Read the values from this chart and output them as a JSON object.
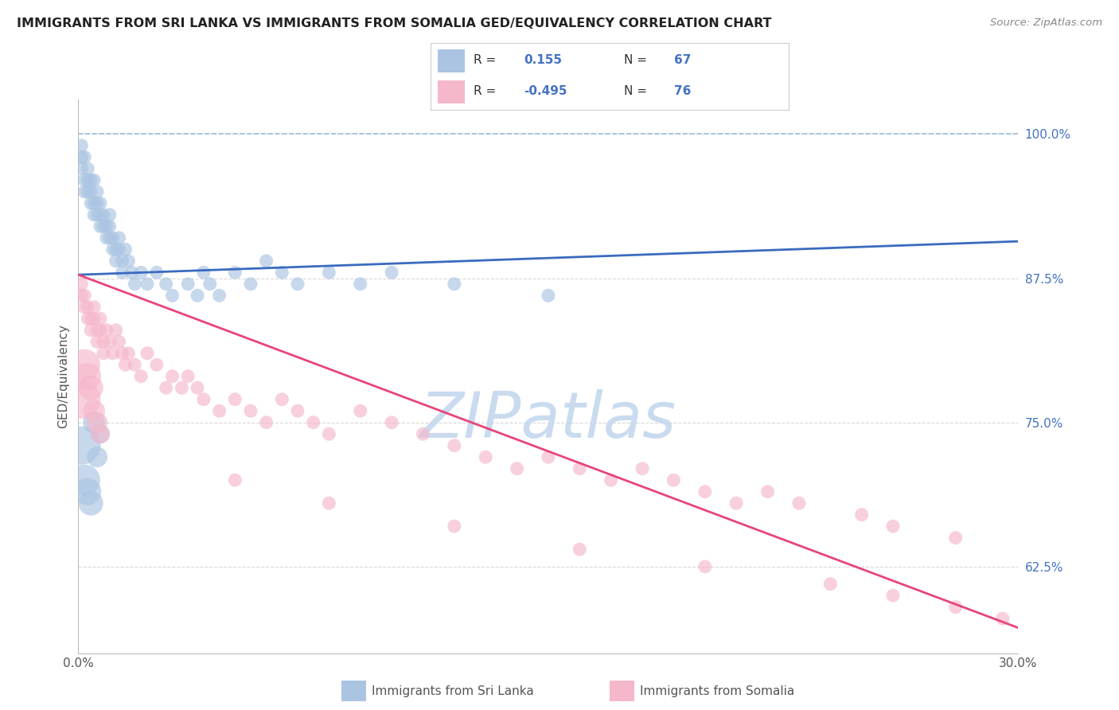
{
  "title": "IMMIGRANTS FROM SRI LANKA VS IMMIGRANTS FROM SOMALIA GED/EQUIVALENCY CORRELATION CHART",
  "source": "Source: ZipAtlas.com",
  "ylabel": "GED/Equivalency",
  "xmin": 0.0,
  "xmax": 0.3,
  "ymin": 0.55,
  "ymax": 1.03,
  "sri_lanka_color": "#aac4e2",
  "somalia_color": "#f5b8cb",
  "sri_lanka_line_color": "#3a6bbf",
  "somalia_line_color": "#e8457a",
  "sri_lanka_R": 0.155,
  "sri_lanka_N": 67,
  "somalia_R": -0.495,
  "somalia_N": 76,
  "watermark": "ZIPatlas",
  "watermark_color": "#c5d8ee",
  "legend_label_sri_lanka": "Immigrants from Sri Lanka",
  "legend_label_somalia": "Immigrants from Somalia",
  "background_color": "#ffffff",
  "grid_color": "#d0d0d0",
  "title_color": "#222222",
  "sri_lanka_trend_x0": 0.0,
  "sri_lanka_trend_y0": 0.878,
  "sri_lanka_trend_x1": 0.3,
  "sri_lanka_trend_y1": 0.907,
  "somalia_trend_x0": 0.0,
  "somalia_trend_y0": 0.878,
  "somalia_trend_x1": 0.3,
  "somalia_trend_y1": 0.572,
  "dashed_line_y": 1.0,
  "ytick_positions": [
    0.625,
    0.75,
    0.875,
    1.0
  ],
  "ytick_labels": [
    "62.5%",
    "75.0%",
    "87.5%",
    "100.0%"
  ],
  "sri_lanka_x": [
    0.001,
    0.001,
    0.001,
    0.002,
    0.002,
    0.002,
    0.003,
    0.003,
    0.003,
    0.004,
    0.004,
    0.004,
    0.005,
    0.005,
    0.005,
    0.006,
    0.006,
    0.006,
    0.007,
    0.007,
    0.007,
    0.008,
    0.008,
    0.009,
    0.009,
    0.01,
    0.01,
    0.01,
    0.011,
    0.011,
    0.012,
    0.012,
    0.013,
    0.013,
    0.014,
    0.014,
    0.015,
    0.016,
    0.017,
    0.018,
    0.02,
    0.022,
    0.025,
    0.028,
    0.03,
    0.035,
    0.038,
    0.04,
    0.042,
    0.045,
    0.05,
    0.055,
    0.06,
    0.065,
    0.07,
    0.08,
    0.09,
    0.1,
    0.12,
    0.15,
    0.001,
    0.002,
    0.003,
    0.004,
    0.005,
    0.006,
    0.007
  ],
  "sri_lanka_y": [
    0.98,
    0.97,
    0.99,
    0.96,
    0.95,
    0.98,
    0.97,
    0.96,
    0.95,
    0.94,
    0.96,
    0.95,
    0.94,
    0.96,
    0.93,
    0.95,
    0.94,
    0.93,
    0.94,
    0.93,
    0.92,
    0.93,
    0.92,
    0.92,
    0.91,
    0.93,
    0.92,
    0.91,
    0.9,
    0.91,
    0.9,
    0.89,
    0.91,
    0.9,
    0.89,
    0.88,
    0.9,
    0.89,
    0.88,
    0.87,
    0.88,
    0.87,
    0.88,
    0.87,
    0.86,
    0.87,
    0.86,
    0.88,
    0.87,
    0.86,
    0.88,
    0.87,
    0.89,
    0.88,
    0.87,
    0.88,
    0.87,
    0.88,
    0.87,
    0.86,
    0.73,
    0.7,
    0.69,
    0.68,
    0.75,
    0.72,
    0.74
  ],
  "sri_lanka_size": [
    15,
    15,
    15,
    15,
    15,
    15,
    15,
    15,
    15,
    15,
    15,
    15,
    15,
    15,
    15,
    15,
    15,
    15,
    15,
    15,
    15,
    15,
    15,
    15,
    15,
    15,
    15,
    15,
    15,
    15,
    15,
    15,
    15,
    15,
    15,
    15,
    15,
    15,
    15,
    15,
    15,
    15,
    15,
    15,
    15,
    15,
    15,
    15,
    15,
    15,
    15,
    15,
    15,
    15,
    15,
    15,
    15,
    15,
    15,
    15,
    120,
    80,
    60,
    50,
    40,
    35,
    30
  ],
  "somalia_x": [
    0.001,
    0.001,
    0.002,
    0.002,
    0.003,
    0.003,
    0.004,
    0.004,
    0.005,
    0.005,
    0.006,
    0.006,
    0.007,
    0.007,
    0.008,
    0.008,
    0.009,
    0.01,
    0.011,
    0.012,
    0.013,
    0.014,
    0.015,
    0.016,
    0.018,
    0.02,
    0.022,
    0.025,
    0.028,
    0.03,
    0.033,
    0.035,
    0.038,
    0.04,
    0.045,
    0.05,
    0.055,
    0.06,
    0.065,
    0.07,
    0.075,
    0.08,
    0.09,
    0.1,
    0.11,
    0.12,
    0.13,
    0.14,
    0.15,
    0.16,
    0.17,
    0.18,
    0.19,
    0.2,
    0.21,
    0.22,
    0.23,
    0.25,
    0.26,
    0.28,
    0.001,
    0.002,
    0.003,
    0.004,
    0.005,
    0.006,
    0.007,
    0.05,
    0.08,
    0.12,
    0.16,
    0.2,
    0.24,
    0.26,
    0.28,
    0.295
  ],
  "somalia_y": [
    0.87,
    0.86,
    0.86,
    0.85,
    0.85,
    0.84,
    0.84,
    0.83,
    0.85,
    0.84,
    0.83,
    0.82,
    0.84,
    0.83,
    0.82,
    0.81,
    0.83,
    0.82,
    0.81,
    0.83,
    0.82,
    0.81,
    0.8,
    0.81,
    0.8,
    0.79,
    0.81,
    0.8,
    0.78,
    0.79,
    0.78,
    0.79,
    0.78,
    0.77,
    0.76,
    0.77,
    0.76,
    0.75,
    0.77,
    0.76,
    0.75,
    0.74,
    0.76,
    0.75,
    0.74,
    0.73,
    0.72,
    0.71,
    0.72,
    0.71,
    0.7,
    0.71,
    0.7,
    0.69,
    0.68,
    0.69,
    0.68,
    0.67,
    0.66,
    0.65,
    0.77,
    0.8,
    0.79,
    0.78,
    0.76,
    0.75,
    0.74,
    0.7,
    0.68,
    0.66,
    0.64,
    0.625,
    0.61,
    0.6,
    0.59,
    0.58
  ],
  "somalia_size": [
    15,
    15,
    15,
    15,
    15,
    15,
    15,
    15,
    15,
    15,
    15,
    15,
    15,
    15,
    15,
    15,
    15,
    15,
    15,
    15,
    15,
    15,
    15,
    15,
    15,
    15,
    15,
    15,
    15,
    15,
    15,
    15,
    15,
    15,
    15,
    15,
    15,
    15,
    15,
    15,
    15,
    15,
    15,
    15,
    15,
    15,
    15,
    15,
    15,
    15,
    15,
    15,
    15,
    15,
    15,
    15,
    15,
    15,
    15,
    15,
    120,
    80,
    60,
    50,
    40,
    35,
    30,
    15,
    15,
    15,
    15,
    15,
    15,
    15,
    15,
    15
  ]
}
